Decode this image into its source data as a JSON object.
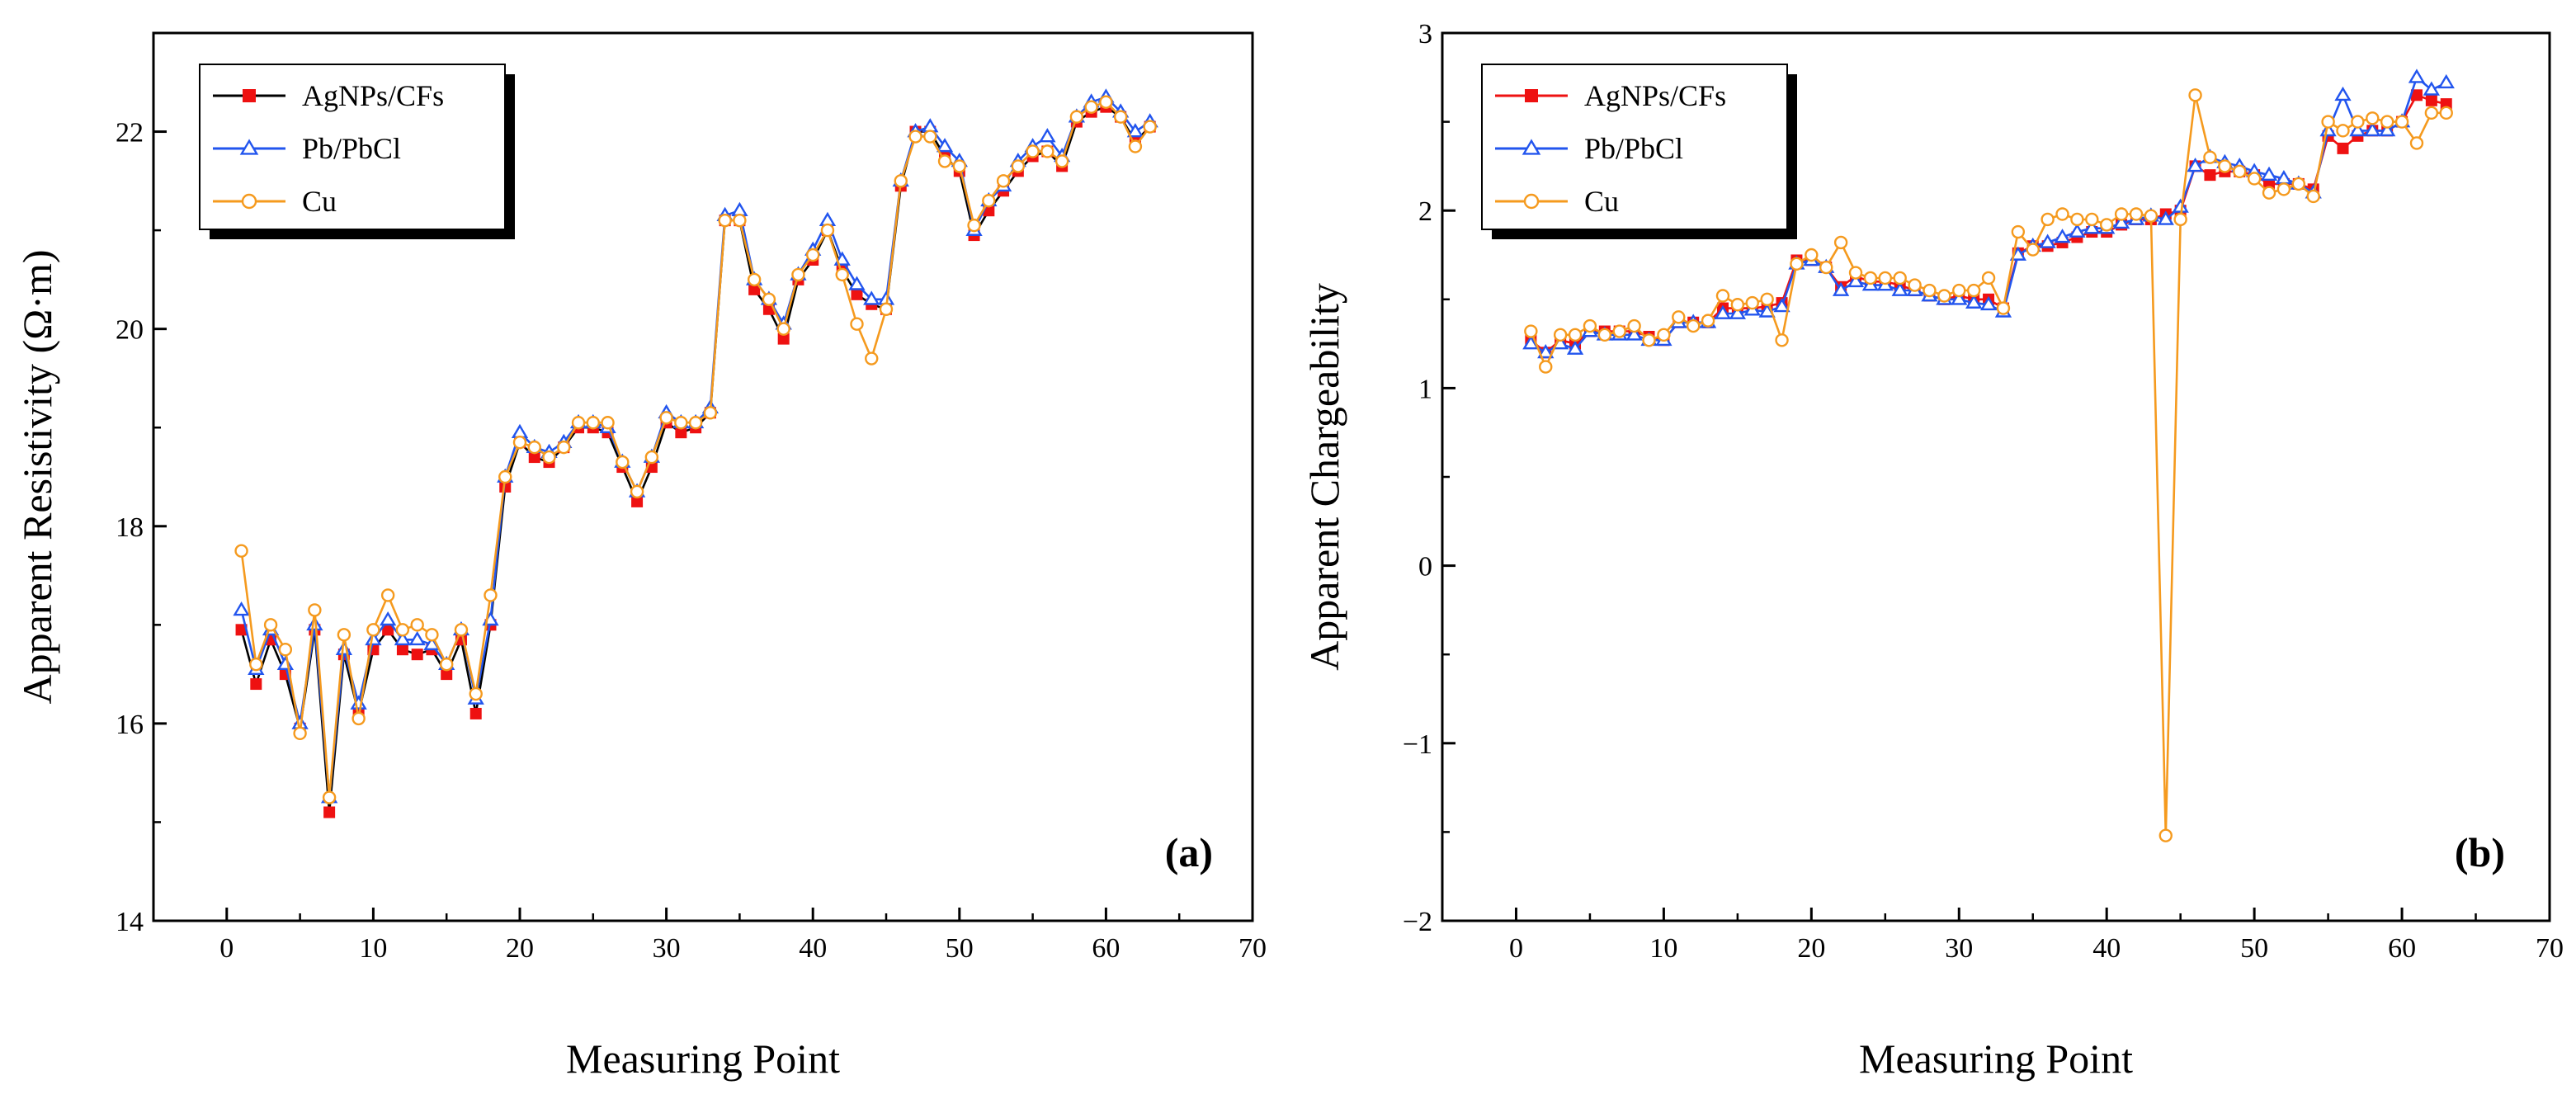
{
  "chart_data": [
    {
      "id": "a",
      "type": "line",
      "panel_label": "(a)",
      "xlabel": "Measuring Point",
      "ylabel": "Apparent Resistivity (Ω·m)",
      "xlim": [
        -5,
        70
      ],
      "ylim": [
        14,
        23
      ],
      "xticks": [
        0,
        10,
        20,
        30,
        40,
        50,
        60,
        70
      ],
      "yticks": [
        14,
        16,
        18,
        20,
        22
      ],
      "x": [
        1,
        2,
        3,
        4,
        5,
        6,
        7,
        8,
        9,
        10,
        11,
        12,
        13,
        14,
        15,
        16,
        17,
        18,
        19,
        20,
        21,
        22,
        23,
        24,
        25,
        26,
        27,
        28,
        29,
        30,
        31,
        32,
        33,
        34,
        35,
        36,
        37,
        38,
        39,
        40,
        41,
        42,
        43,
        44,
        45,
        46,
        47,
        48,
        49,
        50,
        51,
        52,
        53,
        54,
        55,
        56,
        57,
        58,
        59,
        60,
        61,
        62,
        63
      ],
      "legend": [
        "AgNPs/CFs",
        "Pb/PbCl",
        "Cu"
      ],
      "series": [
        {
          "name": "AgNPs/CFs",
          "color": "#000000",
          "marker_color": "#ee1111",
          "marker": "square",
          "values": [
            16.95,
            16.4,
            16.85,
            16.5,
            15.95,
            16.95,
            15.1,
            16.7,
            16.1,
            16.75,
            16.95,
            16.75,
            16.7,
            16.75,
            16.5,
            16.85,
            16.1,
            17.0,
            18.4,
            18.85,
            18.7,
            18.65,
            18.8,
            19.0,
            19.0,
            18.95,
            18.6,
            18.25,
            18.6,
            19.05,
            18.95,
            19.0,
            19.15,
            21.1,
            21.1,
            20.4,
            20.2,
            19.9,
            20.5,
            20.7,
            21.0,
            20.6,
            20.35,
            20.25,
            20.2,
            21.45,
            22.0,
            22.0,
            21.75,
            21.6,
            20.95,
            21.2,
            21.4,
            21.6,
            21.75,
            21.8,
            21.65,
            22.1,
            22.2,
            22.25,
            22.15,
            21.9,
            22.05
          ]
        },
        {
          "name": "Pb/PbCl",
          "color": "#2255ee",
          "marker_color": "#2255ee",
          "marker": "triangle",
          "values": [
            17.15,
            16.55,
            16.95,
            16.6,
            16.0,
            17.0,
            15.25,
            16.75,
            16.2,
            16.85,
            17.05,
            16.85,
            16.85,
            16.8,
            16.6,
            16.95,
            16.25,
            17.05,
            18.5,
            18.95,
            18.8,
            18.75,
            18.85,
            19.05,
            19.05,
            19.0,
            18.65,
            18.35,
            18.7,
            19.15,
            19.05,
            19.05,
            19.2,
            21.15,
            21.2,
            20.5,
            20.3,
            20.05,
            20.55,
            20.8,
            21.1,
            20.7,
            20.45,
            20.3,
            20.3,
            21.5,
            22.0,
            22.05,
            21.85,
            21.7,
            21.0,
            21.3,
            21.45,
            21.7,
            21.85,
            21.95,
            21.75,
            22.15,
            22.3,
            22.35,
            22.2,
            22.0,
            22.1
          ]
        },
        {
          "name": "Cu",
          "color": "#f59a1e",
          "marker_color": "#f59a1e",
          "marker": "circle",
          "values": [
            17.75,
            16.6,
            17.0,
            16.75,
            15.9,
            17.15,
            15.25,
            16.9,
            16.05,
            16.95,
            17.3,
            16.95,
            17.0,
            16.9,
            16.6,
            16.95,
            16.3,
            17.3,
            18.5,
            18.85,
            18.8,
            18.7,
            18.8,
            19.05,
            19.05,
            19.05,
            18.65,
            18.35,
            18.7,
            19.1,
            19.05,
            19.05,
            19.15,
            21.1,
            21.1,
            20.5,
            20.3,
            20.0,
            20.55,
            20.75,
            21.0,
            20.55,
            20.05,
            19.7,
            20.2,
            21.5,
            21.95,
            21.95,
            21.7,
            21.65,
            21.05,
            21.3,
            21.5,
            21.65,
            21.8,
            21.8,
            21.7,
            22.15,
            22.25,
            22.3,
            22.15,
            21.85,
            22.05
          ]
        }
      ]
    },
    {
      "id": "b",
      "type": "line",
      "panel_label": "(b)",
      "xlabel": "Measuring Point",
      "ylabel": "Apparent Chargeability",
      "xlim": [
        -5,
        70
      ],
      "ylim": [
        -2,
        3
      ],
      "xticks": [
        0,
        10,
        20,
        30,
        40,
        50,
        60,
        70
      ],
      "yticks": [
        -2,
        -1,
        0,
        1,
        2,
        3
      ],
      "ytick_labels": [
        "−2",
        "−1",
        "0",
        "1",
        "2",
        "3"
      ],
      "x": [
        1,
        2,
        3,
        4,
        5,
        6,
        7,
        8,
        9,
        10,
        11,
        12,
        13,
        14,
        15,
        16,
        17,
        18,
        19,
        20,
        21,
        22,
        23,
        24,
        25,
        26,
        27,
        28,
        29,
        30,
        31,
        32,
        33,
        34,
        35,
        36,
        37,
        38,
        39,
        40,
        41,
        42,
        43,
        44,
        45,
        46,
        47,
        48,
        49,
        50,
        51,
        52,
        53,
        54,
        55,
        56,
        57,
        58,
        59,
        60,
        61,
        62,
        63
      ],
      "legend": [
        "AgNPs/CFs",
        "Pb/PbCl",
        "Cu"
      ],
      "series": [
        {
          "name": "AgNPs/CFs",
          "color": "#ee1111",
          "marker_color": "#ee1111",
          "marker": "square",
          "values": [
            1.27,
            1.2,
            1.27,
            1.25,
            1.32,
            1.32,
            1.32,
            1.32,
            1.29,
            1.27,
            1.37,
            1.37,
            1.37,
            1.45,
            1.45,
            1.45,
            1.46,
            1.48,
            1.72,
            1.72,
            1.68,
            1.57,
            1.63,
            1.6,
            1.6,
            1.58,
            1.55,
            1.52,
            1.5,
            1.52,
            1.5,
            1.5,
            1.45,
            1.76,
            1.8,
            1.8,
            1.82,
            1.85,
            1.88,
            1.88,
            1.92,
            1.95,
            1.95,
            1.98,
            2.0,
            2.25,
            2.2,
            2.22,
            2.22,
            2.2,
            2.15,
            2.15,
            2.15,
            2.12,
            2.42,
            2.35,
            2.42,
            2.45,
            2.45,
            2.5,
            2.65,
            2.62,
            2.6
          ]
        },
        {
          "name": "Pb/PbCl",
          "color": "#2255ee",
          "marker_color": "#2255ee",
          "marker": "triangle",
          "values": [
            1.25,
            1.2,
            1.25,
            1.22,
            1.32,
            1.3,
            1.3,
            1.3,
            1.27,
            1.27,
            1.37,
            1.37,
            1.37,
            1.42,
            1.42,
            1.44,
            1.43,
            1.46,
            1.7,
            1.72,
            1.68,
            1.55,
            1.6,
            1.58,
            1.58,
            1.55,
            1.55,
            1.52,
            1.5,
            1.5,
            1.48,
            1.47,
            1.43,
            1.75,
            1.8,
            1.82,
            1.85,
            1.88,
            1.9,
            1.9,
            1.93,
            1.95,
            1.97,
            1.95,
            2.02,
            2.25,
            2.3,
            2.27,
            2.25,
            2.22,
            2.2,
            2.18,
            2.15,
            2.1,
            2.45,
            2.65,
            2.45,
            2.45,
            2.45,
            2.5,
            2.75,
            2.68,
            2.72
          ]
        },
        {
          "name": "Cu",
          "color": "#f59a1e",
          "marker_color": "#f59a1e",
          "marker": "circle",
          "values": [
            1.32,
            1.12,
            1.3,
            1.3,
            1.35,
            1.3,
            1.32,
            1.35,
            1.27,
            1.3,
            1.4,
            1.35,
            1.38,
            1.52,
            1.47,
            1.48,
            1.5,
            1.27,
            1.7,
            1.75,
            1.68,
            1.82,
            1.65,
            1.62,
            1.62,
            1.62,
            1.58,
            1.55,
            1.52,
            1.55,
            1.55,
            1.62,
            1.45,
            1.88,
            1.78,
            1.95,
            1.98,
            1.95,
            1.95,
            1.92,
            1.98,
            1.98,
            1.97,
            -1.52,
            1.95,
            2.65,
            2.3,
            2.25,
            2.22,
            2.18,
            2.1,
            2.12,
            2.15,
            2.08,
            2.5,
            2.45,
            2.5,
            2.52,
            2.5,
            2.5,
            2.38,
            2.55,
            2.55
          ]
        }
      ]
    }
  ]
}
